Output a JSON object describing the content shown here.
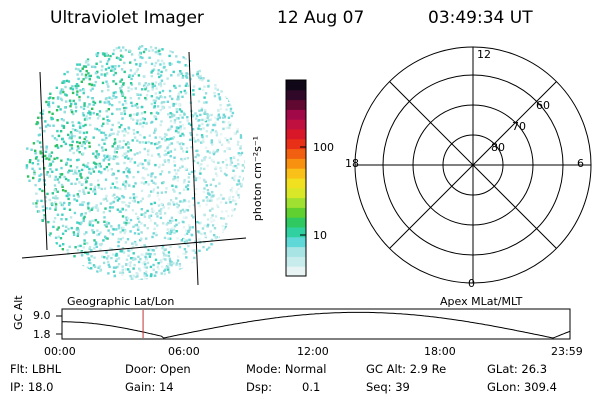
{
  "header": {
    "instrument": "Ultraviolet Imager",
    "date": "12 Aug 07",
    "time": "03:49:34 UT"
  },
  "colorbar": {
    "unit_label": "photon cm⁻²s⁻¹",
    "tick_100": "100",
    "tick_10": "10",
    "colors": [
      "#e8f4f4",
      "#c8ecec",
      "#a8e4e4",
      "#60d8d8",
      "#30d0a0",
      "#30c860",
      "#60d030",
      "#a0e030",
      "#d8e828",
      "#f0e020",
      "#f8c018",
      "#f89010",
      "#f06010",
      "#e83018",
      "#d81828",
      "#c01040",
      "#a00848",
      "#600830",
      "#300828",
      "#100818"
    ]
  },
  "polar": {
    "lat_labels": [
      "60",
      "70",
      "80"
    ],
    "mlt_labels": {
      "top": "12",
      "left": "18",
      "right": "6",
      "bottom": "0"
    }
  },
  "labels": {
    "geo": "Geographic Lat/Lon",
    "apex": "Apex MLat/MLT"
  },
  "timeline": {
    "axis_label": "GC Alt",
    "y_top": "9.0",
    "y_bottom": "1.8",
    "ticks": [
      "00:00",
      "06:00",
      "12:00",
      "18:00",
      "23:59"
    ],
    "marker_hours": 3.83
  },
  "info": {
    "flt": "Flt: LBHL",
    "door": "Door: Open",
    "mode": "Mode: Normal",
    "gc_alt": "GC Alt: 2.9 Re",
    "glat": "GLat:  26.3",
    "ip": "IP: 18.0",
    "gain": "Gain: 14",
    "dsp_label": "Dsp:",
    "dsp_value": "0.1",
    "seq": "Seq: 39",
    "glon": "GLon: 309.4"
  }
}
